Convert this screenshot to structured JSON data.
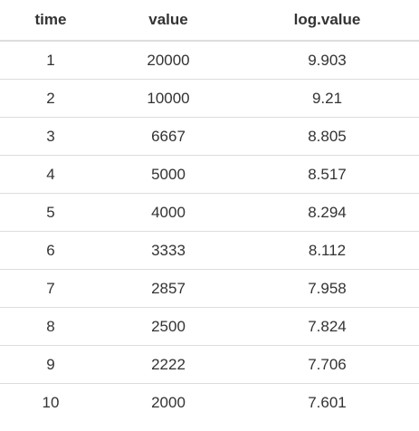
{
  "table": {
    "columns": [
      "time",
      "value",
      "log.value"
    ],
    "rows": [
      [
        "1",
        "20000",
        "9.903"
      ],
      [
        "2",
        "10000",
        "9.21"
      ],
      [
        "3",
        "6667",
        "8.805"
      ],
      [
        "4",
        "5000",
        "8.517"
      ],
      [
        "5",
        "4000",
        "8.294"
      ],
      [
        "6",
        "3333",
        "8.112"
      ],
      [
        "7",
        "2857",
        "7.958"
      ],
      [
        "8",
        "2500",
        "7.824"
      ],
      [
        "9",
        "2222",
        "7.706"
      ],
      [
        "10",
        "2000",
        "7.601"
      ]
    ]
  }
}
